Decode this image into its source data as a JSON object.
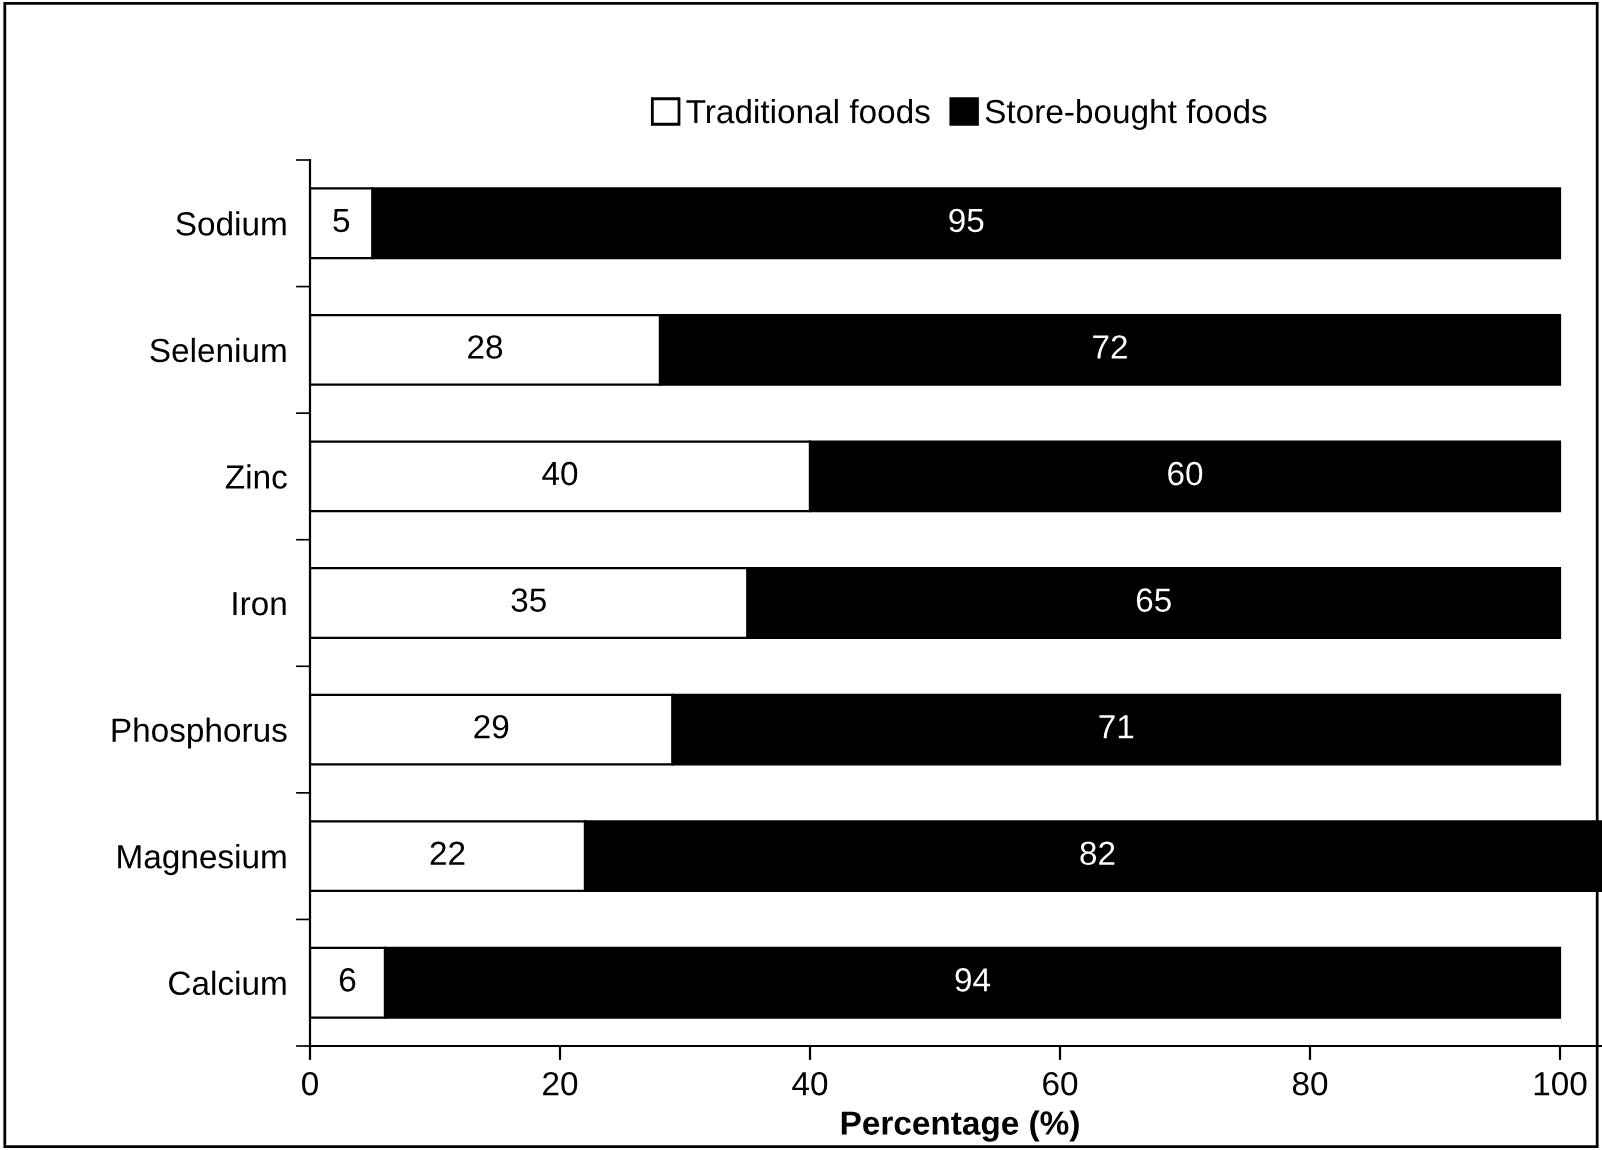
{
  "chart_data": {
    "type": "bar",
    "orientation": "horizontal",
    "stacked": true,
    "categories": [
      "Sodium",
      "Selenium",
      "Zinc",
      "Iron",
      "Phosphorus",
      "Magnesium",
      "Calcium"
    ],
    "series": [
      {
        "name": "Traditional foods",
        "color": "#ffffff",
        "values": [
          5,
          28,
          40,
          35,
          29,
          22,
          6
        ]
      },
      {
        "name": "Store-bought foods",
        "color": "#000000",
        "values": [
          95,
          72,
          60,
          65,
          71,
          82,
          94
        ]
      }
    ],
    "xlabel": "Percentage (%)",
    "xlim": [
      0,
      104
    ],
    "xticks": [
      0,
      20,
      40,
      60,
      80,
      100
    ],
    "data_labels": true,
    "legend": "top",
    "grid": false
  }
}
